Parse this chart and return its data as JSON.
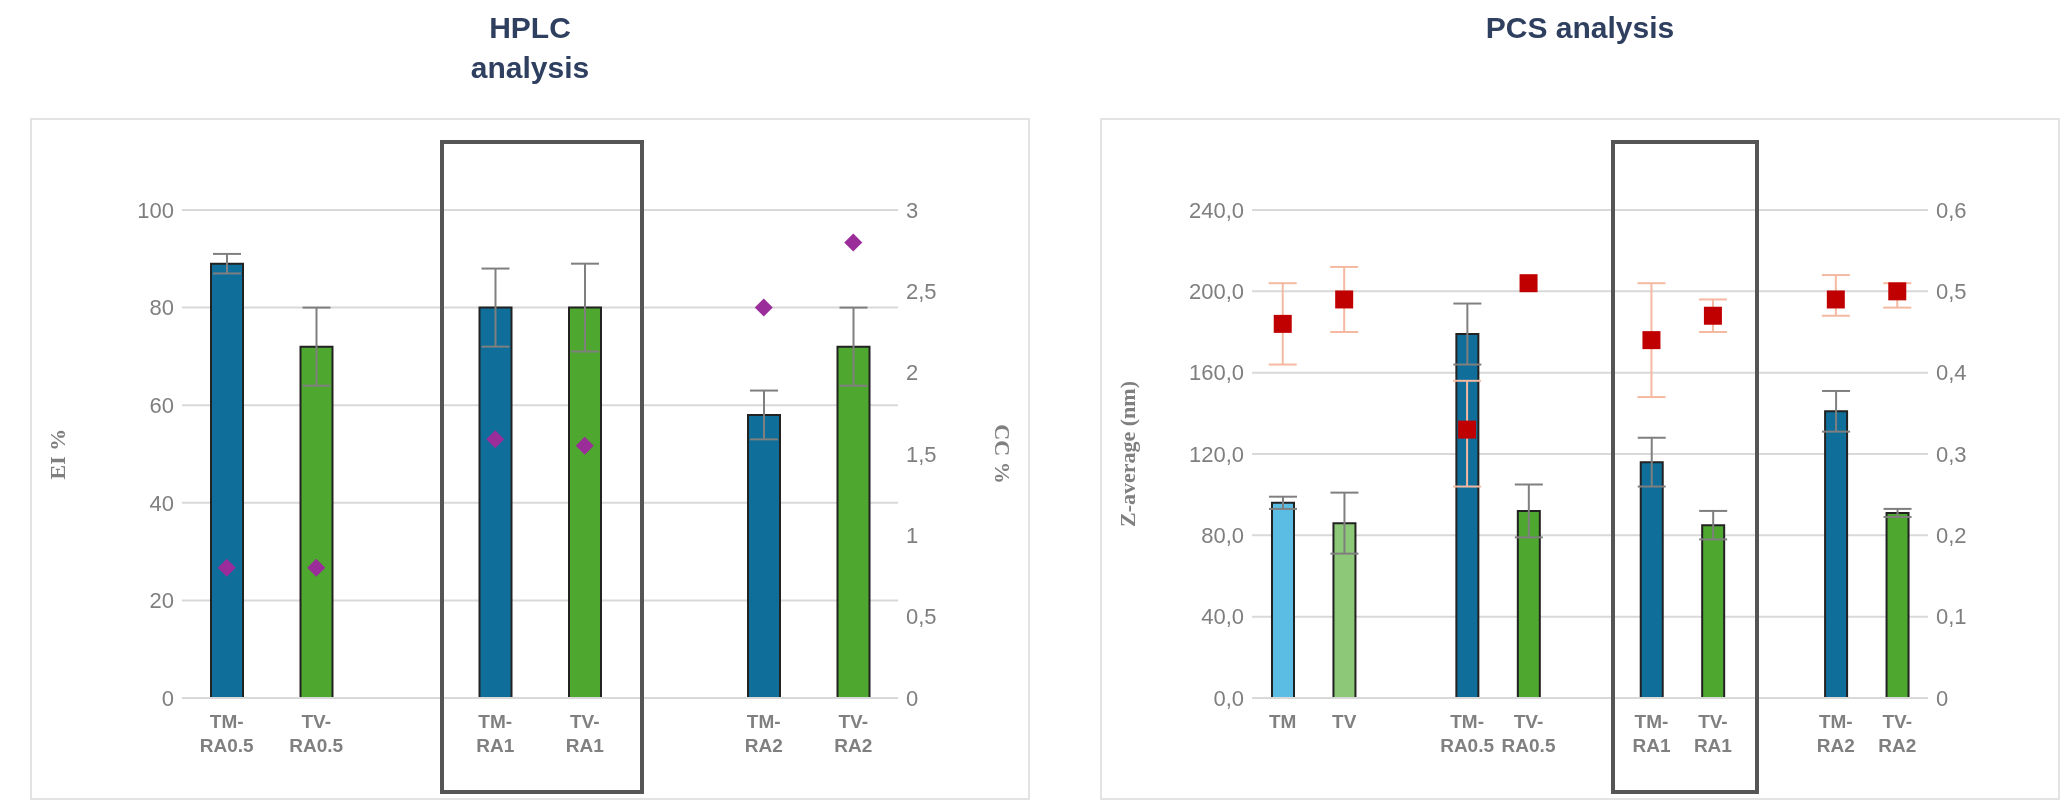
{
  "chart_data": [
    {
      "type": "bar",
      "title": "HPLC analysis",
      "ylabel": "EI %",
      "y2label": "CC %",
      "categories": [
        "TM-RA0.5",
        "TV-RA0.5",
        null,
        "TM-RA1",
        "TV-RA1",
        null,
        "TM-RA2",
        "TV-RA2"
      ],
      "series": [
        {
          "type": "bar",
          "colors": [
            "#0f6f9a",
            "#4ea72e",
            null,
            "#0f6f9a",
            "#4ea72e",
            null,
            "#0f6f9a",
            "#4ea72e"
          ],
          "values": [
            89,
            72,
            null,
            80,
            80,
            null,
            58,
            72
          ],
          "errors": [
            2,
            8,
            null,
            8,
            9,
            null,
            5,
            8
          ]
        },
        {
          "type": "scatter",
          "axis": "y2",
          "marker": "diamond",
          "color": "#9b2d9b",
          "values": [
            0.8,
            0.8,
            null,
            1.59,
            1.55,
            null,
            2.4,
            2.8
          ]
        }
      ],
      "ylim": [
        0,
        100
      ],
      "yticks": [
        0,
        20,
        40,
        60,
        80,
        100
      ],
      "y2lim": [
        0,
        3
      ],
      "y2ticks": [
        0,
        {
          "value": 0.5,
          "label": "0,5"
        },
        1,
        {
          "value": 1.5,
          "label": "1,5"
        },
        2,
        {
          "value": 2.5,
          "label": "2,5"
        },
        3
      ],
      "grid": "y"
    },
    {
      "type": "bar",
      "title": "PCS analysis",
      "ylabel": "Z-average (nm)",
      "categories": [
        "TM",
        "TV",
        null,
        "TM-RA0.5",
        "TV-RA0.5",
        null,
        "TM-RA1",
        "TV-RA1",
        null,
        "TM-RA2",
        "TV-RA2"
      ],
      "series": [
        {
          "type": "bar",
          "colors": [
            "#5bbde3",
            "#8cc877",
            null,
            "#0f6f9a",
            "#4ea72e",
            null,
            "#0f6f9a",
            "#4ea72e",
            null,
            "#0f6f9a",
            "#4ea72e"
          ],
          "values": [
            96,
            86,
            null,
            179,
            92,
            null,
            116,
            85,
            null,
            141,
            91
          ],
          "errors": [
            3,
            15,
            null,
            15,
            13,
            null,
            12,
            7,
            null,
            10,
            2
          ]
        },
        {
          "type": "scatter",
          "axis": "y2",
          "marker": "square",
          "color": "#c00000",
          "values": [
            0.46,
            0.49,
            null,
            0.33,
            0.51,
            null,
            0.44,
            0.47,
            null,
            0.49,
            0.5
          ],
          "errors": [
            0.05,
            0.04,
            null,
            [
              0.26,
              0.39
            ],
            null,
            null,
            [
              0.37,
              0.51
            ],
            0.02,
            null,
            [
              0.47,
              0.52
            ],
            [
              0.48,
              0.51
            ]
          ]
        }
      ],
      "ylim": [
        0,
        240
      ],
      "yticks": [
        {
          "value": 0,
          "label": "0,0"
        },
        {
          "value": 40,
          "label": "40,0"
        },
        {
          "value": 80,
          "label": "80,0"
        },
        {
          "value": 120,
          "label": "120,0"
        },
        {
          "value": 160,
          "label": "160,0"
        },
        {
          "value": 200,
          "label": "200,0"
        },
        {
          "value": 240,
          "label": "240,0"
        }
      ],
      "y2lim": [
        0,
        0.6
      ],
      "y2ticks": [
        0,
        {
          "value": 0.1,
          "label": "0,1"
        },
        {
          "value": 0.2,
          "label": "0,2"
        },
        {
          "value": 0.3,
          "label": "0,3"
        },
        {
          "value": 0.4,
          "label": "0,4"
        },
        {
          "value": 0.5,
          "label": "0,5"
        },
        {
          "value": 0.6,
          "label": "0,6"
        }
      ],
      "grid": "y"
    }
  ]
}
